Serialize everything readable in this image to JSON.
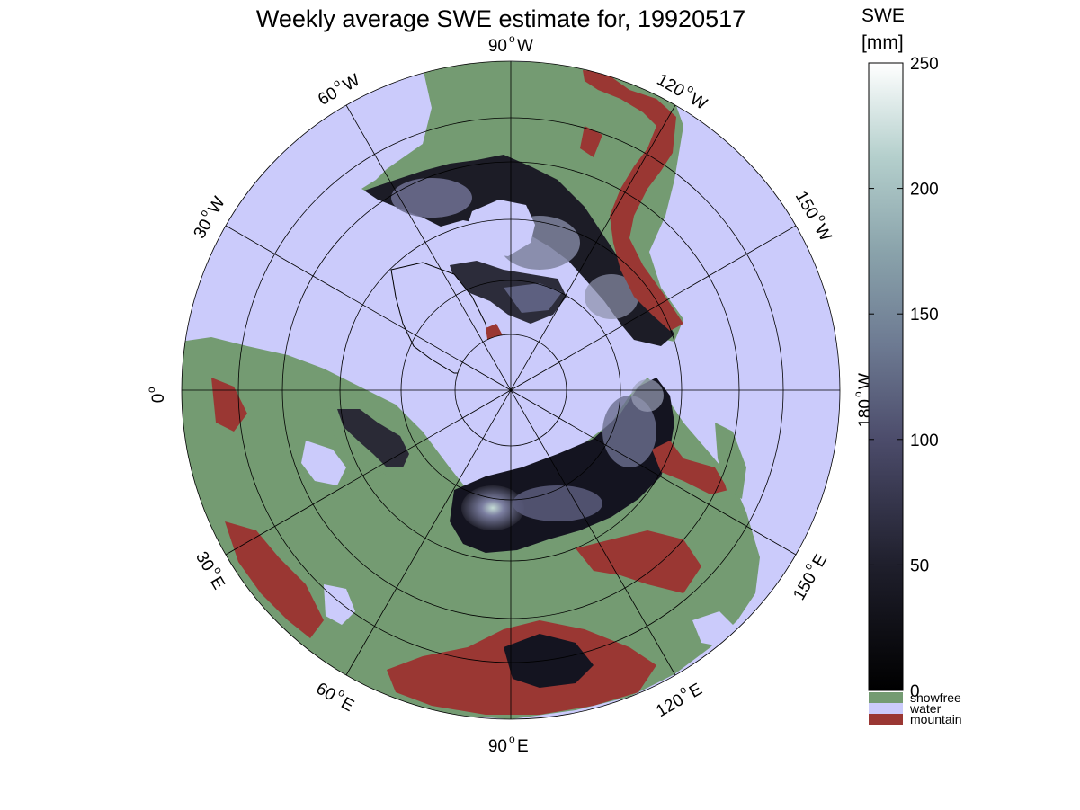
{
  "title": "Weekly average SWE estimate for, 19920517",
  "projection": "north-polar-stereographic",
  "longitude_labels": {
    "w90": "90",
    "w60": "60",
    "w120": "120",
    "w30": "30",
    "w150": "150",
    "zero": "0",
    "w180": "180",
    "e30": "30",
    "e150": "150",
    "e60": "60",
    "e120": "120",
    "e90": "90"
  },
  "hemisphere_letters": {
    "W": "W",
    "E": "E"
  },
  "degree_symbol": "o",
  "colorbar": {
    "title_line1": "SWE",
    "title_line2": "[mm]",
    "ticks": [
      "250",
      "200",
      "150",
      "100",
      "50",
      "0"
    ],
    "tick_values": [
      250,
      200,
      150,
      100,
      50,
      0
    ],
    "range": [
      0,
      250
    ],
    "colormap": "bone",
    "categories": [
      {
        "label": "snowfree",
        "color": "#749b72"
      },
      {
        "label": "water",
        "color": "#cbcbfb"
      },
      {
        "label": "mountain",
        "color": "#9a3733"
      }
    ]
  },
  "colors": {
    "water": "#cbcbfb",
    "snowfree": "#749b72",
    "mountain": "#9a3733",
    "swe_dark": "#08080d",
    "swe_mid": "#5c5c84",
    "swe_light": "#c8ddd8"
  }
}
